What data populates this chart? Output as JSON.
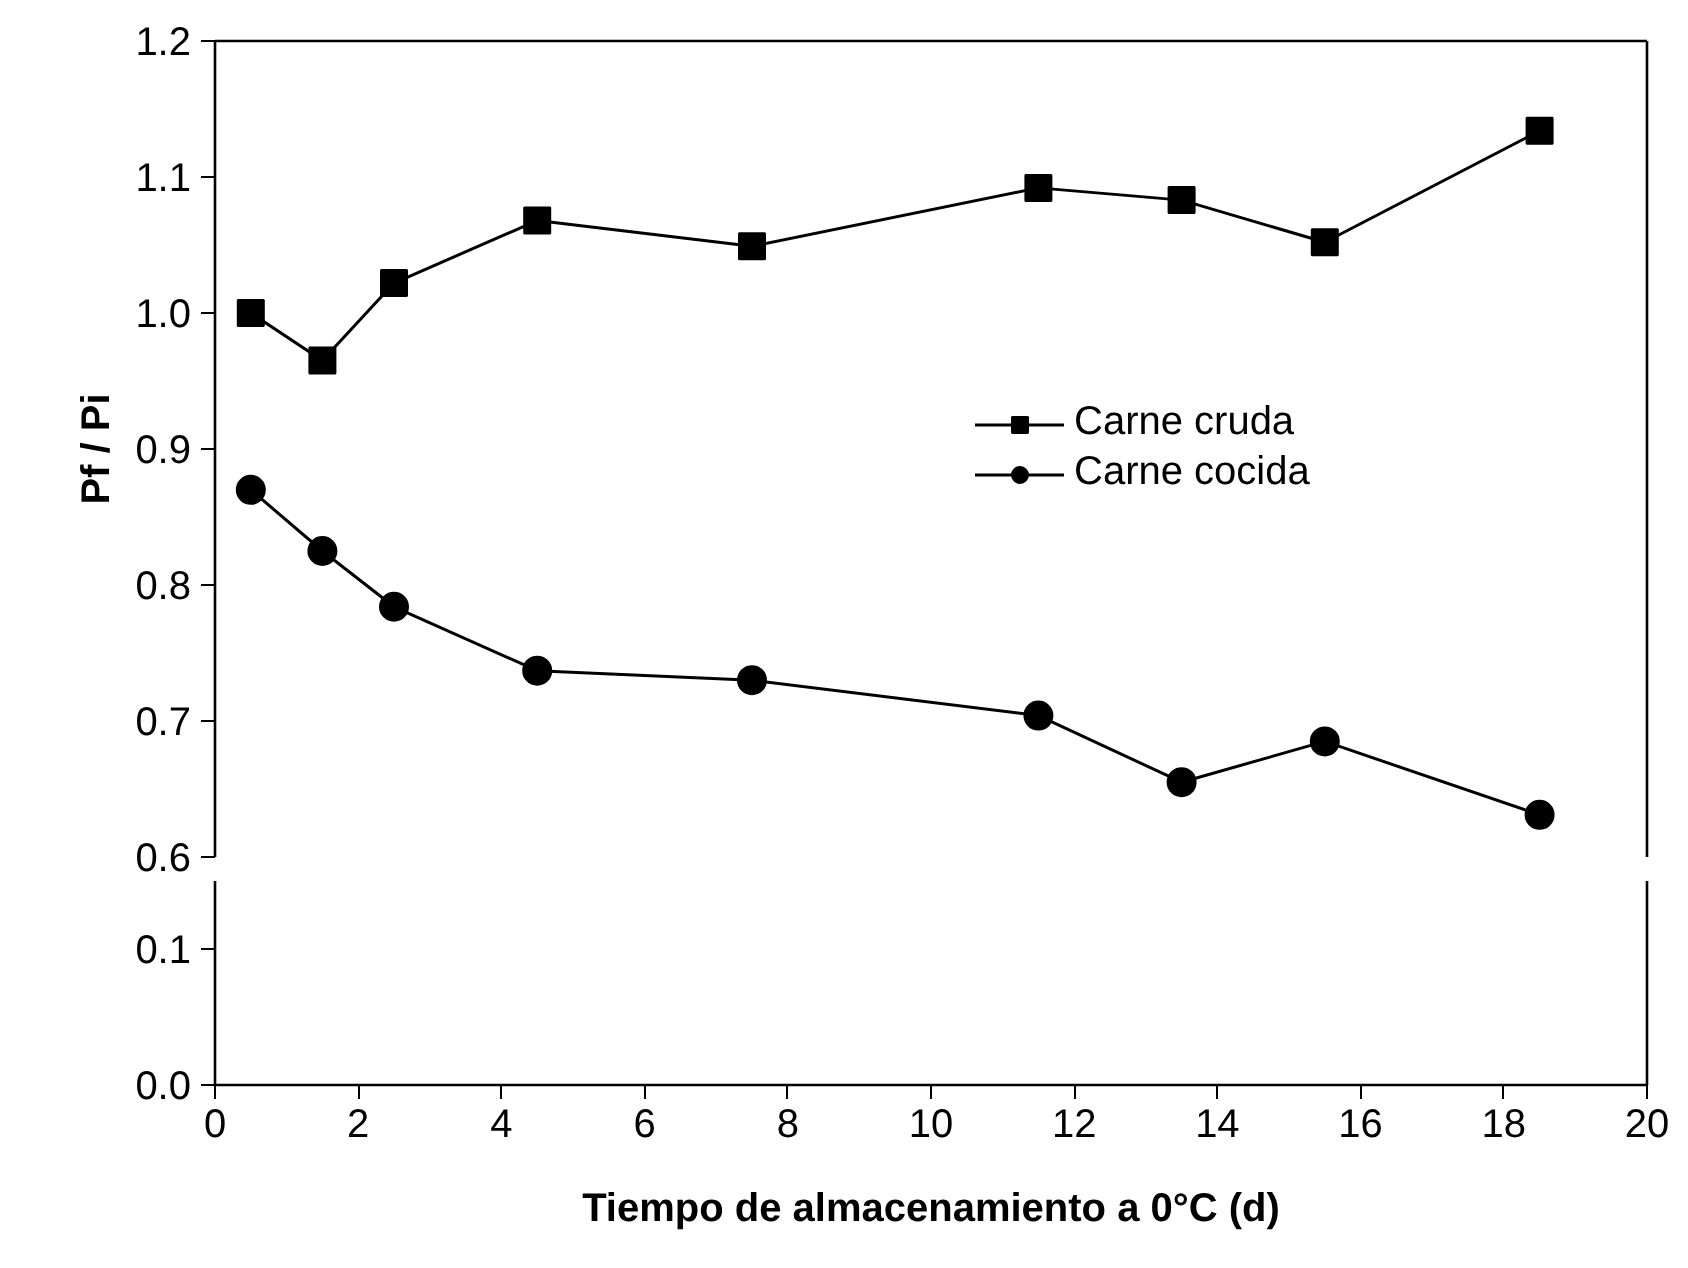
{
  "chart_data": [
    {
      "type": "line",
      "ylabel": "Pf / Pi",
      "xlim": [
        0,
        20
      ],
      "ylim": [
        0.6,
        1.2
      ],
      "yticks": [
        0.6,
        0.7,
        0.8,
        0.9,
        {
          "value": 1.0,
          "label": "1.0"
        },
        1.1,
        1.2
      ],
      "tick_labels": "y",
      "grid": false,
      "legend": "right",
      "line_style": "solid",
      "x": [
        0.5,
        1.5,
        2.5,
        4.5,
        7.5,
        11.5,
        13.5,
        15.5,
        18.5
      ],
      "series": [
        {
          "name": "Carne cruda",
          "color": "#000000",
          "marker": "square",
          "values": [
            1.0,
            0.965,
            1.022,
            1.068,
            1.049,
            1.092,
            1.083,
            1.052,
            1.134
          ]
        },
        {
          "name": "Carne cocida",
          "color": "#000000",
          "marker": "circle",
          "values": [
            0.87,
            0.825,
            0.784,
            0.737,
            0.73,
            0.704,
            0.655,
            0.685,
            0.631
          ]
        }
      ]
    },
    {
      "type": "line",
      "xlabel": "Tiempo de almacenamiento a 0°C (d)",
      "xlim": [
        0,
        20
      ],
      "xticks": [
        0,
        2,
        4,
        6,
        8,
        10,
        12,
        14,
        16,
        18,
        20
      ],
      "ylim": [
        0,
        0.15
      ],
      "yticks": [
        {
          "value": 0,
          "label": "0.0"
        },
        0.1
      ],
      "grid": false
    }
  ]
}
